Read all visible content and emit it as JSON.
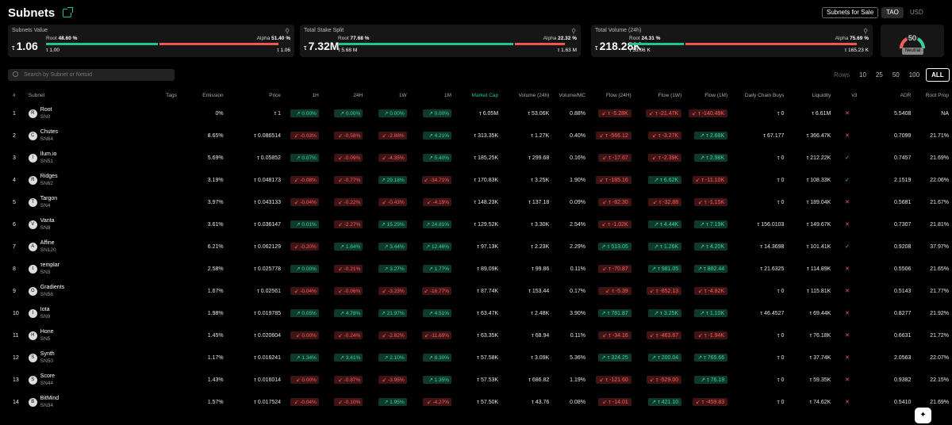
{
  "header": {
    "title": "Subnets",
    "sale_button": "Subnets for Sale",
    "currency": [
      "TAO",
      "USD"
    ],
    "currency_active": "TAO"
  },
  "cards": [
    {
      "title": "Subnets Value",
      "value": "1.06",
      "root_label": "Root",
      "root_pct": "48.60 %",
      "alpha_label": "Alpha",
      "alpha_pct": "51.40 %",
      "root_val": "τ 1.00",
      "alpha_val": "τ 1.06",
      "root_frac": 0.486
    },
    {
      "title": "Total Stake Split",
      "value": "7.32M",
      "root_label": "Root",
      "root_pct": "77.68 %",
      "alpha_label": "Alpha",
      "alpha_pct": "22.32 %",
      "root_val": "τ 5.68 M",
      "alpha_val": "τ 1.63 M",
      "root_frac": 0.7768
    },
    {
      "title": "Total Volume (24h)",
      "value": "218.28K",
      "root_label": "Root",
      "root_pct": "24.31 %",
      "alpha_label": "Alpha",
      "alpha_pct": "75.69 %",
      "root_val": "τ 53.06 K",
      "alpha_val": "τ 165.23 K",
      "root_frac": 0.2431
    }
  ],
  "gauge": {
    "value": "50",
    "label": "Neutral"
  },
  "search": {
    "placeholder": "Search by Subnet or Netuid"
  },
  "rows_selector": {
    "label": "Rows",
    "options": [
      "10",
      "25",
      "50",
      "100",
      "ALL"
    ],
    "active": "ALL"
  },
  "columns": [
    "#",
    "Subnet",
    "Tags",
    "Emission",
    "Price",
    "1H",
    "24H",
    "1W",
    "1M",
    "Market Cap",
    "Volume (24h)",
    "Volume/MC",
    "Flow (24H)",
    "Flow (1W)",
    "Flow (1M)",
    "Daily Chain Buys",
    "Liquidity",
    "v3",
    "ADR",
    "Root Prop"
  ],
  "colors": {
    "accent": "#22c38e",
    "up": "#33d59b",
    "down": "#ff5d5d"
  },
  "rows": [
    {
      "n": "1",
      "name": "Root",
      "sn": "SN0",
      "tags": "",
      "em": "0%",
      "price": "τ 1",
      "h1": "0.00%",
      "h24": "0.00%",
      "w1": "0.00%",
      "m1": "0.00%",
      "d": [
        "u",
        "u",
        "u",
        "u"
      ],
      "mc": "τ 6.05M",
      "vol": "τ 53.06K",
      "vmc": "0.88%",
      "f24": "τ -5.28K",
      "f1w": "τ -21.47K",
      "f1m": "τ -140.49K",
      "fd": [
        "d",
        "d",
        "d"
      ],
      "buys": "τ 0",
      "liq": "τ 6.61M",
      "v3": "x",
      "adr": "5.5408",
      "rp": "NA"
    },
    {
      "n": "2",
      "name": "Chutes",
      "sn": "SN64",
      "tags": "",
      "em": "8.65%",
      "price": "τ 0.086514",
      "h1": "-0.03%",
      "h24": "-0.58%",
      "w1": "-2.88%",
      "m1": "4.21%",
      "d": [
        "d",
        "d",
        "d",
        "u"
      ],
      "mc": "τ 313.35K",
      "vol": "τ 1.27K",
      "vmc": "0.40%",
      "f24": "τ -566.12",
      "f1w": "τ -3.27K",
      "f1m": "τ 2.68K",
      "fd": [
        "d",
        "d",
        "u"
      ],
      "buys": "τ 67.177",
      "liq": "τ 366.47K",
      "v3": "x",
      "adr": "0.7099",
      "rp": "21.71%"
    },
    {
      "n": "3",
      "name": "Ilum.io",
      "sn": "SN51",
      "tags": "",
      "em": "5.69%",
      "price": "τ 0.05852",
      "h1": "0.07%",
      "h24": "-0.09%",
      "w1": "-4.35%",
      "m1": "5.40%",
      "d": [
        "u",
        "d",
        "d",
        "u"
      ],
      "mc": "τ 185.25K",
      "vol": "τ 299.68",
      "vmc": "0.16%",
      "f24": "τ -17.67",
      "f1w": "τ -2.39K",
      "f1m": "τ 2.98K",
      "fd": [
        "d",
        "d",
        "u"
      ],
      "buys": "τ 0",
      "liq": "τ 212.22K",
      "v3": "ok",
      "adr": "0.7457",
      "rp": "21.69%"
    },
    {
      "n": "4",
      "name": "Ridges",
      "sn": "SN62",
      "tags": "",
      "em": "3.19%",
      "price": "τ 0.048173",
      "h1": "-0.08%",
      "h24": "-0.77%",
      "w1": "29.18%",
      "m1": "-34.71%",
      "d": [
        "d",
        "d",
        "u",
        "d"
      ],
      "mc": "τ 170.83K",
      "vol": "τ 3.25K",
      "vmc": "1.90%",
      "f24": "τ -185.16",
      "f1w": "τ 6.62K",
      "f1m": "τ -11.10K",
      "fd": [
        "d",
        "u",
        "d"
      ],
      "buys": "τ 0",
      "liq": "τ 108.33K",
      "v3": "ok",
      "adr": "2.1519",
      "rp": "22.06%"
    },
    {
      "n": "5",
      "name": "Targon",
      "sn": "SN4",
      "tags": "",
      "em": "3.97%",
      "price": "τ 0.043133",
      "h1": "-0.04%",
      "h24": "-0.22%",
      "w1": "-0.43%",
      "m1": "-4.19%",
      "d": [
        "d",
        "d",
        "d",
        "d"
      ],
      "mc": "τ 148.23K",
      "vol": "τ 137.18",
      "vmc": "0.09%",
      "f24": "τ -82.30",
      "f1w": "τ -32.88",
      "f1m": "τ -1.15K",
      "fd": [
        "d",
        "d",
        "d"
      ],
      "buys": "τ 0",
      "liq": "τ 189.04K",
      "v3": "x",
      "adr": "0.5681",
      "rp": "21.67%"
    },
    {
      "n": "6",
      "name": "Vanta",
      "sn": "SN8",
      "tags": "",
      "em": "3.61%",
      "price": "τ 0.036147",
      "h1": "0.01%",
      "h24": "-2.27%",
      "w1": "15.29%",
      "m1": "24.81%",
      "d": [
        "u",
        "d",
        "u",
        "u"
      ],
      "mc": "τ 129.52K",
      "vol": "τ 3.30K",
      "vmc": "2.54%",
      "f24": "τ -1.02K",
      "f1w": "τ 4.44K",
      "f1m": "τ 7.19K",
      "fd": [
        "d",
        "u",
        "u"
      ],
      "buys": "τ 156.0103",
      "liq": "τ 149.67K",
      "v3": "x",
      "adr": "0.7307",
      "rp": "21.81%"
    },
    {
      "n": "7",
      "name": "Affine",
      "sn": "SN120",
      "tags": "",
      "em": "6.21%",
      "price": "τ 0.062129",
      "h1": "-0.20%",
      "h24": "1.84%",
      "w1": "3.44%",
      "m1": "12.46%",
      "d": [
        "d",
        "u",
        "u",
        "u"
      ],
      "mc": "τ 97.13K",
      "vol": "τ 2.23K",
      "vmc": "2.29%",
      "f24": "τ 513.05",
      "f1w": "τ 1.26K",
      "f1m": "τ 4.20K",
      "fd": [
        "u",
        "u",
        "u"
      ],
      "buys": "τ 14.3698",
      "liq": "τ 101.41K",
      "v3": "ok",
      "adr": "0.9208",
      "rp": "37.97%"
    },
    {
      "n": "8",
      "name": "τemplar",
      "sn": "SN3",
      "tags": "",
      "em": "2.58%",
      "price": "τ 0.025778",
      "h1": "0.00%",
      "h24": "-0.21%",
      "w1": "3.27%",
      "m1": "1.77%",
      "d": [
        "u",
        "d",
        "u",
        "u"
      ],
      "mc": "τ 89.09K",
      "vol": "τ 99.86",
      "vmc": "0.11%",
      "f24": "τ -70.87",
      "f1w": "τ 981.05",
      "f1m": "τ 882.44",
      "fd": [
        "d",
        "u",
        "u"
      ],
      "buys": "τ 21.6325",
      "liq": "τ 114.89K",
      "v3": "x",
      "adr": "0.5506",
      "rp": "21.65%"
    },
    {
      "n": "9",
      "name": "Gradients",
      "sn": "SN56",
      "tags": "",
      "em": "1.67%",
      "price": "τ 0.02561",
      "h1": "-0.04%",
      "h24": "-0.06%",
      "w1": "-3.23%",
      "m1": "-16.77%",
      "d": [
        "d",
        "d",
        "d",
        "d"
      ],
      "mc": "τ 87.74K",
      "vol": "τ 153.44",
      "vmc": "0.17%",
      "f24": "τ -5.39",
      "f1w": "τ -852.13",
      "f1m": "τ -4.82K",
      "fd": [
        "d",
        "d",
        "d"
      ],
      "buys": "τ 0",
      "liq": "τ 115.81K",
      "v3": "x",
      "adr": "0.5143",
      "rp": "21.77%"
    },
    {
      "n": "10",
      "name": "Iota",
      "sn": "SN9",
      "tags": "",
      "em": "1.98%",
      "price": "τ 0.019785",
      "h1": "0.05%",
      "h24": "4.78%",
      "w1": "21.97%",
      "m1": "4.51%",
      "d": [
        "u",
        "u",
        "u",
        "u"
      ],
      "mc": "τ 63.47K",
      "vol": "τ 2.48K",
      "vmc": "3.90%",
      "f24": "τ 781.87",
      "f1w": "τ 3.25K",
      "f1m": "τ 1.10K",
      "fd": [
        "u",
        "u",
        "u"
      ],
      "buys": "τ 46.4527",
      "liq": "τ 69.44K",
      "v3": "x",
      "adr": "0.8277",
      "rp": "21.92%"
    },
    {
      "n": "11",
      "name": "Hone",
      "sn": "SN5",
      "tags": "",
      "em": "1.45%",
      "price": "τ 0.020604",
      "h1": "0.00%",
      "h24": "-0.24%",
      "w1": "-2.82%",
      "m1": "-11.69%",
      "d": [
        "d",
        "d",
        "d",
        "d"
      ],
      "mc": "τ 63.35K",
      "vol": "τ 68.94",
      "vmc": "0.11%",
      "f24": "τ -34.16",
      "f1w": "τ -463.67",
      "f1m": "τ -1.94K",
      "fd": [
        "d",
        "d",
        "d"
      ],
      "buys": "τ 0",
      "liq": "τ 76.18K",
      "v3": "x",
      "adr": "0.6631",
      "rp": "21.72%"
    },
    {
      "n": "12",
      "name": "Synth",
      "sn": "SN50",
      "tags": "",
      "em": "1.17%",
      "price": "τ 0.016241",
      "h1": "1.34%",
      "h24": "3.41%",
      "w1": "2.10%",
      "m1": "8.30%",
      "d": [
        "u",
        "u",
        "u",
        "u"
      ],
      "mc": "τ 57.58K",
      "vol": "τ 3.09K",
      "vmc": "5.36%",
      "f24": "τ 324.25",
      "f1w": "τ 200.04",
      "f1m": "τ 765.66",
      "fd": [
        "u",
        "u",
        "u"
      ],
      "buys": "τ 0",
      "liq": "τ 37.74K",
      "v3": "x",
      "adr": "2.0563",
      "rp": "22.07%"
    },
    {
      "n": "13",
      "name": "Score",
      "sn": "SN44",
      "tags": "",
      "em": "1.43%",
      "price": "τ 0.016014",
      "h1": "0.00%",
      "h24": "-0.87%",
      "w1": "-3.95%",
      "m1": "1.35%",
      "d": [
        "d",
        "d",
        "d",
        "u"
      ],
      "mc": "τ 57.53K",
      "vol": "τ 686.82",
      "vmc": "1.19%",
      "f24": "τ -121.60",
      "f1w": "τ -529.00",
      "f1m": "τ 76.19",
      "fd": [
        "d",
        "d",
        "u"
      ],
      "buys": "τ 0",
      "liq": "τ 59.35K",
      "v3": "x",
      "adr": "0.9382",
      "rp": "22.15%"
    },
    {
      "n": "14",
      "name": "BitMind",
      "sn": "SN34",
      "tags": "",
      "em": "1.57%",
      "price": "τ 0.017524",
      "h1": "-0.04%",
      "h24": "-0.10%",
      "w1": "1.95%",
      "m1": "-4.27%",
      "d": [
        "d",
        "d",
        "u",
        "d"
      ],
      "mc": "τ 57.50K",
      "vol": "τ 43.76",
      "vmc": "0.08%",
      "f24": "τ -14.01",
      "f1w": "τ 421.10",
      "f1m": "τ -459.83",
      "fd": [
        "d",
        "u",
        "d"
      ],
      "buys": "τ 0",
      "liq": "τ 74.62K",
      "v3": "x",
      "adr": "0.5410",
      "rp": "21.69%"
    }
  ]
}
